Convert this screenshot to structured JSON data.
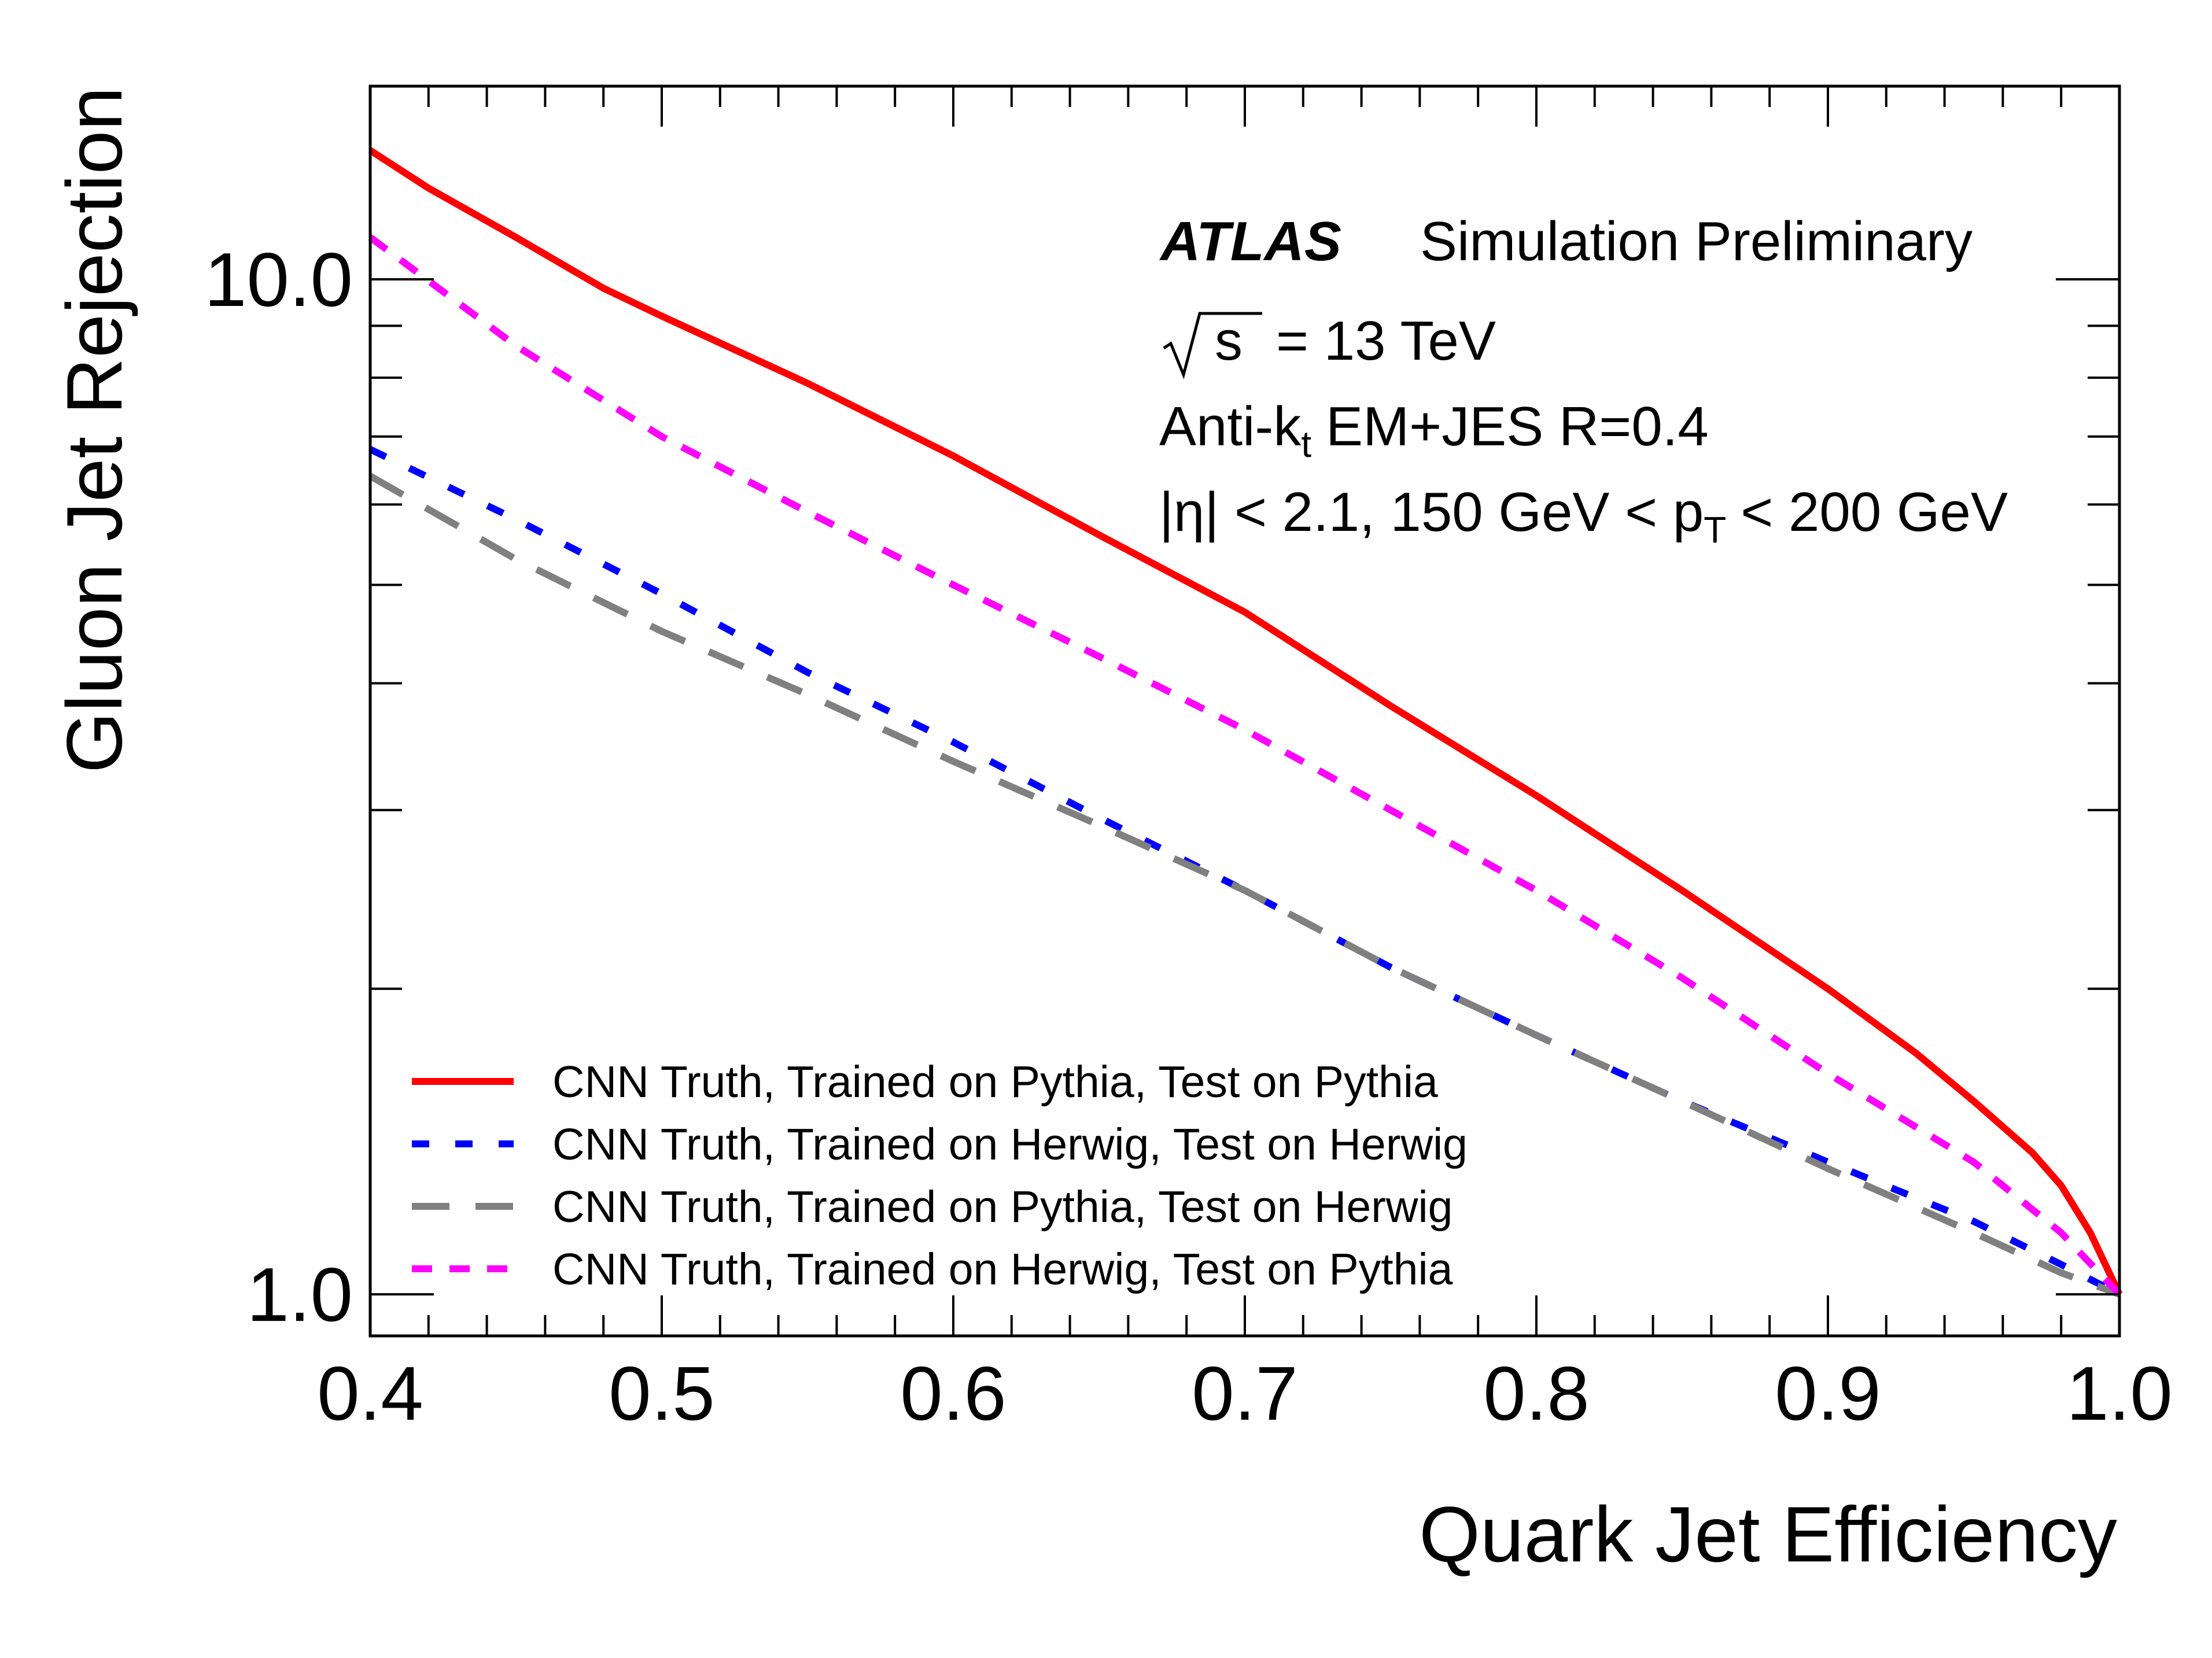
{
  "chart_data": {
    "type": "line",
    "xlabel": "Quark Jet Efficiency",
    "ylabel": "Gluon Jet Rejection",
    "xlim": [
      0.4,
      1.0
    ],
    "ylim": [
      0.91,
      15.5
    ],
    "yscale": "log",
    "xticks": [
      0.4,
      0.5,
      0.6,
      0.7,
      0.8,
      0.9,
      1.0
    ],
    "xtick_labels": [
      "0.4",
      "0.5",
      "0.6",
      "0.7",
      "0.8",
      "0.9",
      "1.0"
    ],
    "yticks": [
      1.0,
      10.0
    ],
    "ytick_labels": [
      "1.0",
      "10.0"
    ],
    "grid": false,
    "legend_position": "bottom-left",
    "annotations": {
      "experiment": "ATLAS",
      "status": "Simulation Preliminary",
      "energy_prefix": "s",
      "energy_value": "= 13 TeV",
      "jet_prefix": "Anti-k",
      "jet_sub": "t",
      "jet_suffix": "EM+JES R=0.4",
      "cut_prefix": "|η| < 2.1, 150 GeV < p",
      "cut_sub": "T",
      "cut_suffix": "< 200 GeV"
    },
    "series": [
      {
        "name": "CNN Truth, Trained on Pythia, Test on Pythia",
        "color": "#ff0000",
        "style": "solid",
        "x": [
          0.4,
          0.42,
          0.45,
          0.48,
          0.5,
          0.55,
          0.6,
          0.65,
          0.7,
          0.75,
          0.8,
          0.85,
          0.9,
          0.93,
          0.95,
          0.97,
          0.98,
          0.99,
          1.0
        ],
        "y": [
          13.4,
          12.3,
          11.0,
          9.8,
          9.2,
          7.9,
          6.7,
          5.6,
          4.7,
          3.8,
          3.1,
          2.5,
          2.0,
          1.73,
          1.55,
          1.38,
          1.28,
          1.15,
          1.0
        ]
      },
      {
        "name": "CNN Truth, Trained on Herwig, Test on Herwig",
        "color": "#0000ff",
        "style": "dotted",
        "x": [
          0.4,
          0.45,
          0.5,
          0.55,
          0.6,
          0.65,
          0.7,
          0.75,
          0.8,
          0.85,
          0.9,
          0.95,
          0.98,
          1.0
        ],
        "y": [
          6.8,
          5.8,
          4.9,
          4.1,
          3.5,
          2.95,
          2.5,
          2.1,
          1.8,
          1.55,
          1.35,
          1.18,
          1.07,
          1.0
        ]
      },
      {
        "name": "CNN Truth, Trained on Pythia, Test on Herwig",
        "color": "#808080",
        "style": "dashed",
        "x": [
          0.4,
          0.45,
          0.5,
          0.55,
          0.6,
          0.65,
          0.7,
          0.75,
          0.8,
          0.85,
          0.9,
          0.95,
          0.98,
          1.0
        ],
        "y": [
          6.4,
          5.3,
          4.5,
          3.9,
          3.35,
          2.9,
          2.5,
          2.1,
          1.8,
          1.55,
          1.33,
          1.15,
          1.05,
          1.0
        ]
      },
      {
        "name": "CNN Truth, Trained on Herwig, Test on Pythia",
        "color": "#ff00ff",
        "style": "dashed",
        "x": [
          0.4,
          0.45,
          0.5,
          0.55,
          0.6,
          0.65,
          0.7,
          0.75,
          0.8,
          0.85,
          0.9,
          0.95,
          0.98,
          1.0
        ],
        "y": [
          11.0,
          8.6,
          7.0,
          5.9,
          5.0,
          4.25,
          3.6,
          3.0,
          2.5,
          2.05,
          1.65,
          1.35,
          1.15,
          1.0
        ]
      }
    ]
  }
}
